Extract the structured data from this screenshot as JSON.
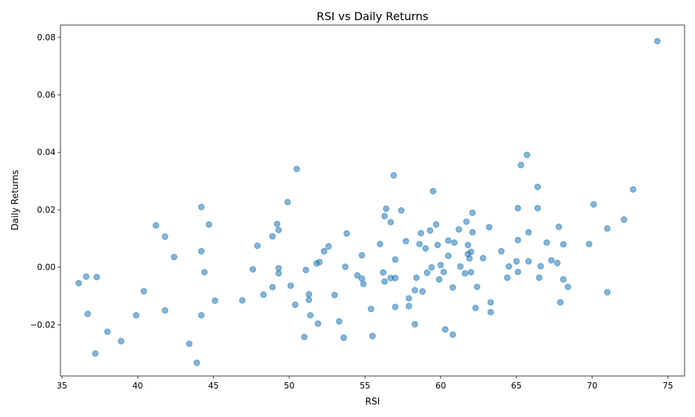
{
  "chart_data": {
    "type": "scatter",
    "title": "RSI vs Daily Returns",
    "xlabel": "RSI",
    "ylabel": "Daily Returns",
    "xlim": [
      34.9,
      76.1
    ],
    "ylim": [
      -0.0378,
      0.0843
    ],
    "xticks": [
      35,
      40,
      45,
      50,
      55,
      60,
      65,
      70,
      75
    ],
    "xtick_labels": [
      "35",
      "40",
      "45",
      "50",
      "55",
      "60",
      "65",
      "70",
      "75"
    ],
    "yticks": [
      -0.02,
      0.0,
      0.02,
      0.04,
      0.06,
      0.08
    ],
    "ytick_labels": [
      "−0.02",
      "0.00",
      "0.02",
      "0.04",
      "0.06",
      "0.08"
    ],
    "grid": false,
    "colors": {
      "point": "#1f77b4",
      "point_alpha": 0.55
    },
    "points": [
      {
        "x": 36.1,
        "y": -0.0055
      },
      {
        "x": 36.6,
        "y": -0.0032
      },
      {
        "x": 36.7,
        "y": -0.0162
      },
      {
        "x": 37.2,
        "y": -0.03
      },
      {
        "x": 37.3,
        "y": -0.0034
      },
      {
        "x": 38.0,
        "y": -0.0224
      },
      {
        "x": 38.9,
        "y": -0.0257
      },
      {
        "x": 39.9,
        "y": -0.0167
      },
      {
        "x": 40.4,
        "y": -0.0083
      },
      {
        "x": 41.2,
        "y": 0.0146
      },
      {
        "x": 41.8,
        "y": 0.0107
      },
      {
        "x": 41.8,
        "y": -0.015
      },
      {
        "x": 42.4,
        "y": 0.0036
      },
      {
        "x": 43.4,
        "y": -0.0266
      },
      {
        "x": 43.9,
        "y": -0.0332
      },
      {
        "x": 44.2,
        "y": 0.021
      },
      {
        "x": 44.2,
        "y": 0.0056
      },
      {
        "x": 44.2,
        "y": -0.0167
      },
      {
        "x": 44.4,
        "y": -0.0017
      },
      {
        "x": 44.7,
        "y": 0.0149
      },
      {
        "x": 45.1,
        "y": -0.0116
      },
      {
        "x": 46.9,
        "y": -0.0115
      },
      {
        "x": 47.6,
        "y": -0.0007
      },
      {
        "x": 47.9,
        "y": 0.0075
      },
      {
        "x": 48.3,
        "y": -0.0095
      },
      {
        "x": 48.9,
        "y": 0.0108
      },
      {
        "x": 48.9,
        "y": -0.0069
      },
      {
        "x": 49.2,
        "y": 0.0151
      },
      {
        "x": 49.3,
        "y": 0.013
      },
      {
        "x": 49.3,
        "y": -0.0003
      },
      {
        "x": 49.3,
        "y": -0.0021
      },
      {
        "x": 49.9,
        "y": 0.0227
      },
      {
        "x": 50.1,
        "y": -0.0064
      },
      {
        "x": 50.4,
        "y": -0.013
      },
      {
        "x": 50.5,
        "y": 0.0342
      },
      {
        "x": 51.0,
        "y": -0.0242
      },
      {
        "x": 51.1,
        "y": -0.0009
      },
      {
        "x": 51.3,
        "y": -0.0094
      },
      {
        "x": 51.3,
        "y": -0.0113
      },
      {
        "x": 51.4,
        "y": -0.0167
      },
      {
        "x": 51.8,
        "y": 0.0014
      },
      {
        "x": 51.9,
        "y": -0.0196
      },
      {
        "x": 52.0,
        "y": 0.0018
      },
      {
        "x": 52.3,
        "y": 0.0056
      },
      {
        "x": 52.6,
        "y": 0.0073
      },
      {
        "x": 53.0,
        "y": -0.0096
      },
      {
        "x": 53.3,
        "y": -0.0188
      },
      {
        "x": 53.6,
        "y": -0.0245
      },
      {
        "x": 53.7,
        "y": 0.0002
      },
      {
        "x": 53.8,
        "y": 0.0118
      },
      {
        "x": 54.5,
        "y": -0.0028
      },
      {
        "x": 54.8,
        "y": 0.0042
      },
      {
        "x": 54.8,
        "y": -0.0039
      },
      {
        "x": 54.9,
        "y": -0.0058
      },
      {
        "x": 55.4,
        "y": -0.0145
      },
      {
        "x": 55.5,
        "y": -0.0239
      },
      {
        "x": 56.0,
        "y": 0.0081
      },
      {
        "x": 56.2,
        "y": -0.0018
      },
      {
        "x": 56.3,
        "y": 0.0178
      },
      {
        "x": 56.3,
        "y": -0.0049
      },
      {
        "x": 56.4,
        "y": 0.0204
      },
      {
        "x": 56.7,
        "y": 0.0157
      },
      {
        "x": 56.7,
        "y": -0.0037
      },
      {
        "x": 56.9,
        "y": 0.032
      },
      {
        "x": 57.0,
        "y": 0.0027
      },
      {
        "x": 57.0,
        "y": -0.0037
      },
      {
        "x": 57.0,
        "y": -0.0138
      },
      {
        "x": 57.4,
        "y": 0.0198
      },
      {
        "x": 57.7,
        "y": 0.0091
      },
      {
        "x": 57.9,
        "y": -0.0108
      },
      {
        "x": 57.9,
        "y": -0.0135
      },
      {
        "x": 58.3,
        "y": -0.008
      },
      {
        "x": 58.3,
        "y": -0.0198
      },
      {
        "x": 58.4,
        "y": -0.0036
      },
      {
        "x": 58.6,
        "y": 0.0081
      },
      {
        "x": 58.7,
        "y": 0.0119
      },
      {
        "x": 58.8,
        "y": -0.0084
      },
      {
        "x": 59.0,
        "y": 0.0066
      },
      {
        "x": 59.1,
        "y": -0.0019
      },
      {
        "x": 59.3,
        "y": 0.0128
      },
      {
        "x": 59.4,
        "y": 0.0
      },
      {
        "x": 59.5,
        "y": 0.0265
      },
      {
        "x": 59.7,
        "y": 0.0149
      },
      {
        "x": 59.8,
        "y": 0.0078
      },
      {
        "x": 59.9,
        "y": -0.0042
      },
      {
        "x": 60.0,
        "y": 0.0008
      },
      {
        "x": 60.2,
        "y": -0.0016
      },
      {
        "x": 60.3,
        "y": -0.0216
      },
      {
        "x": 60.5,
        "y": 0.0093
      },
      {
        "x": 60.5,
        "y": 0.004
      },
      {
        "x": 60.8,
        "y": -0.007
      },
      {
        "x": 60.8,
        "y": -0.0234
      },
      {
        "x": 60.9,
        "y": 0.0086
      },
      {
        "x": 61.2,
        "y": 0.0132
      },
      {
        "x": 61.3,
        "y": 0.0003
      },
      {
        "x": 61.6,
        "y": -0.0021
      },
      {
        "x": 61.7,
        "y": 0.0159
      },
      {
        "x": 61.8,
        "y": 0.0078
      },
      {
        "x": 61.8,
        "y": 0.0046
      },
      {
        "x": 61.9,
        "y": 0.0031
      },
      {
        "x": 62.0,
        "y": 0.0054
      },
      {
        "x": 62.0,
        "y": -0.0017
      },
      {
        "x": 62.1,
        "y": 0.019
      },
      {
        "x": 62.1,
        "y": 0.0122
      },
      {
        "x": 62.3,
        "y": -0.0141
      },
      {
        "x": 62.4,
        "y": -0.0068
      },
      {
        "x": 62.8,
        "y": 0.0032
      },
      {
        "x": 63.2,
        "y": 0.014
      },
      {
        "x": 63.3,
        "y": -0.0122
      },
      {
        "x": 63.3,
        "y": -0.0156
      },
      {
        "x": 64.0,
        "y": 0.0056
      },
      {
        "x": 64.4,
        "y": -0.0036
      },
      {
        "x": 64.5,
        "y": 0.0003
      },
      {
        "x": 65.0,
        "y": 0.0021
      },
      {
        "x": 65.1,
        "y": 0.0206
      },
      {
        "x": 65.1,
        "y": 0.0095
      },
      {
        "x": 65.1,
        "y": -0.0016
      },
      {
        "x": 65.3,
        "y": 0.0356
      },
      {
        "x": 65.7,
        "y": 0.0391
      },
      {
        "x": 65.8,
        "y": 0.0122
      },
      {
        "x": 65.8,
        "y": 0.0021
      },
      {
        "x": 66.4,
        "y": 0.028
      },
      {
        "x": 66.4,
        "y": 0.0206
      },
      {
        "x": 66.5,
        "y": -0.0036
      },
      {
        "x": 66.6,
        "y": 0.0004
      },
      {
        "x": 67.0,
        "y": 0.0086
      },
      {
        "x": 67.3,
        "y": 0.0024
      },
      {
        "x": 67.7,
        "y": 0.0015
      },
      {
        "x": 67.8,
        "y": 0.0141
      },
      {
        "x": 67.9,
        "y": -0.0122
      },
      {
        "x": 68.1,
        "y": 0.008
      },
      {
        "x": 68.1,
        "y": -0.0042
      },
      {
        "x": 68.4,
        "y": -0.0068
      },
      {
        "x": 69.8,
        "y": 0.0081
      },
      {
        "x": 70.1,
        "y": 0.0219
      },
      {
        "x": 71.0,
        "y": 0.0135
      },
      {
        "x": 71.0,
        "y": -0.0087
      },
      {
        "x": 72.1,
        "y": 0.0166
      },
      {
        "x": 72.7,
        "y": 0.0271
      },
      {
        "x": 74.3,
        "y": 0.0787
      }
    ]
  }
}
